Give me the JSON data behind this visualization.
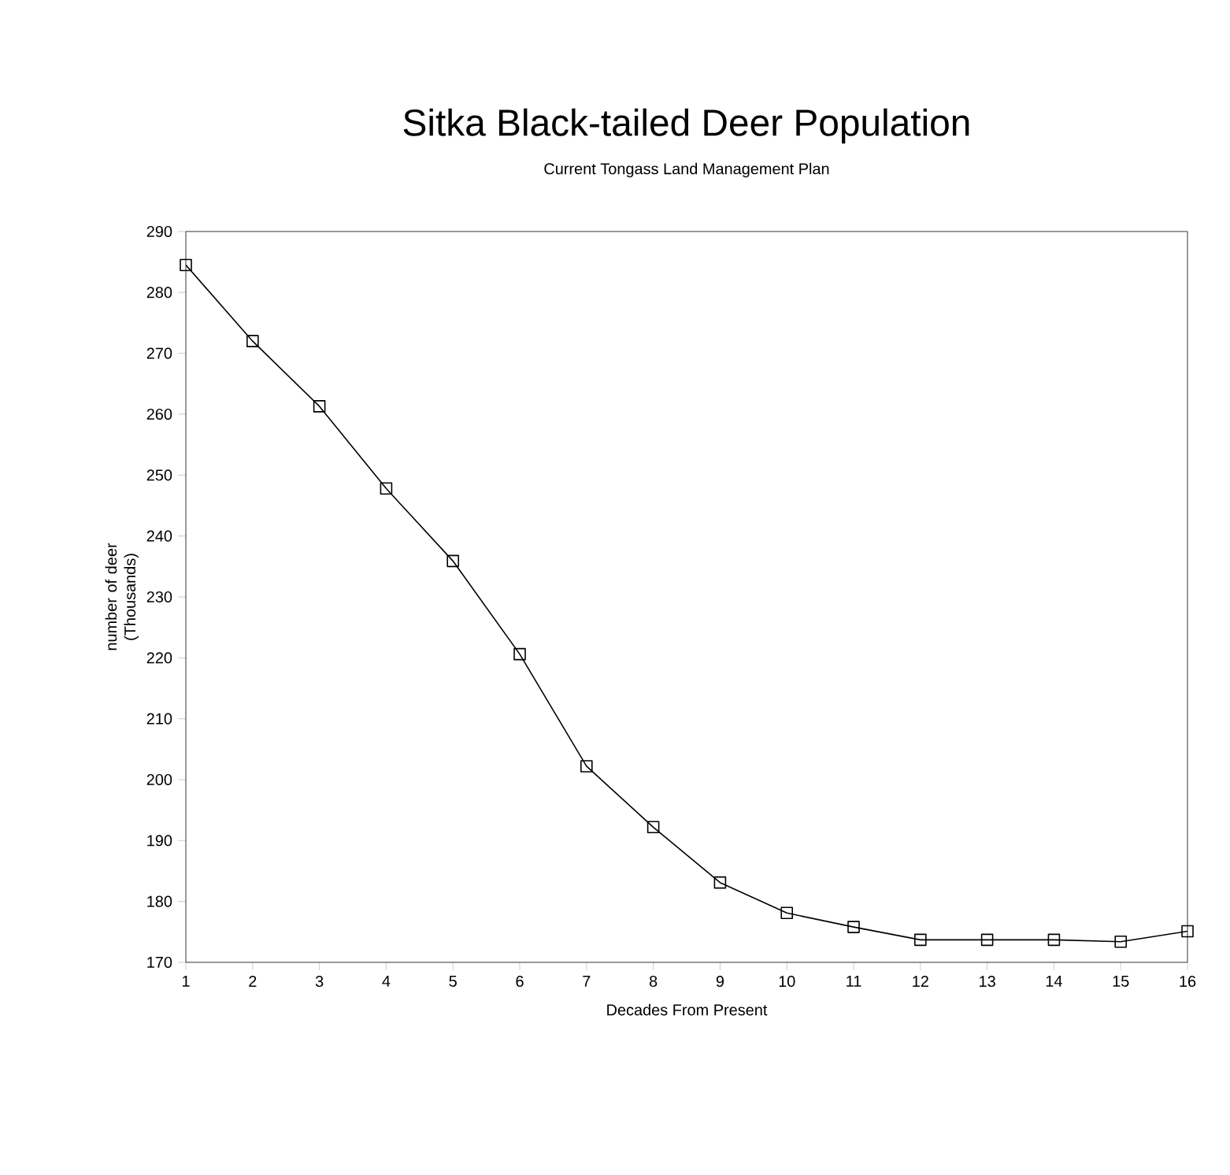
{
  "chart_data": {
    "type": "line",
    "title": "Sitka Black-tailed Deer Population",
    "subtitle": "Current Tongass Land Management Plan",
    "xlabel": "Decades From Present",
    "ylabel": "number of deer (Thousands)",
    "x": [
      1,
      2,
      3,
      4,
      5,
      6,
      7,
      8,
      9,
      10,
      11,
      12,
      13,
      14,
      15,
      16
    ],
    "values": [
      284.5,
      272.0,
      261.3,
      247.8,
      235.9,
      220.6,
      202.2,
      192.2,
      183.1,
      178.1,
      175.8,
      173.7,
      173.7,
      173.7,
      173.4,
      175.1
    ],
    "color": "#000000",
    "marker": "square",
    "line_style": "solid",
    "xlim": [
      1,
      16
    ],
    "xticks": [
      1,
      2,
      3,
      4,
      5,
      6,
      7,
      8,
      9,
      10,
      11,
      12,
      13,
      14,
      15,
      16
    ],
    "ylim": [
      170,
      290
    ],
    "yticks": [
      170,
      180,
      190,
      200,
      210,
      220,
      230,
      240,
      250,
      260,
      270,
      280,
      290
    ]
  }
}
